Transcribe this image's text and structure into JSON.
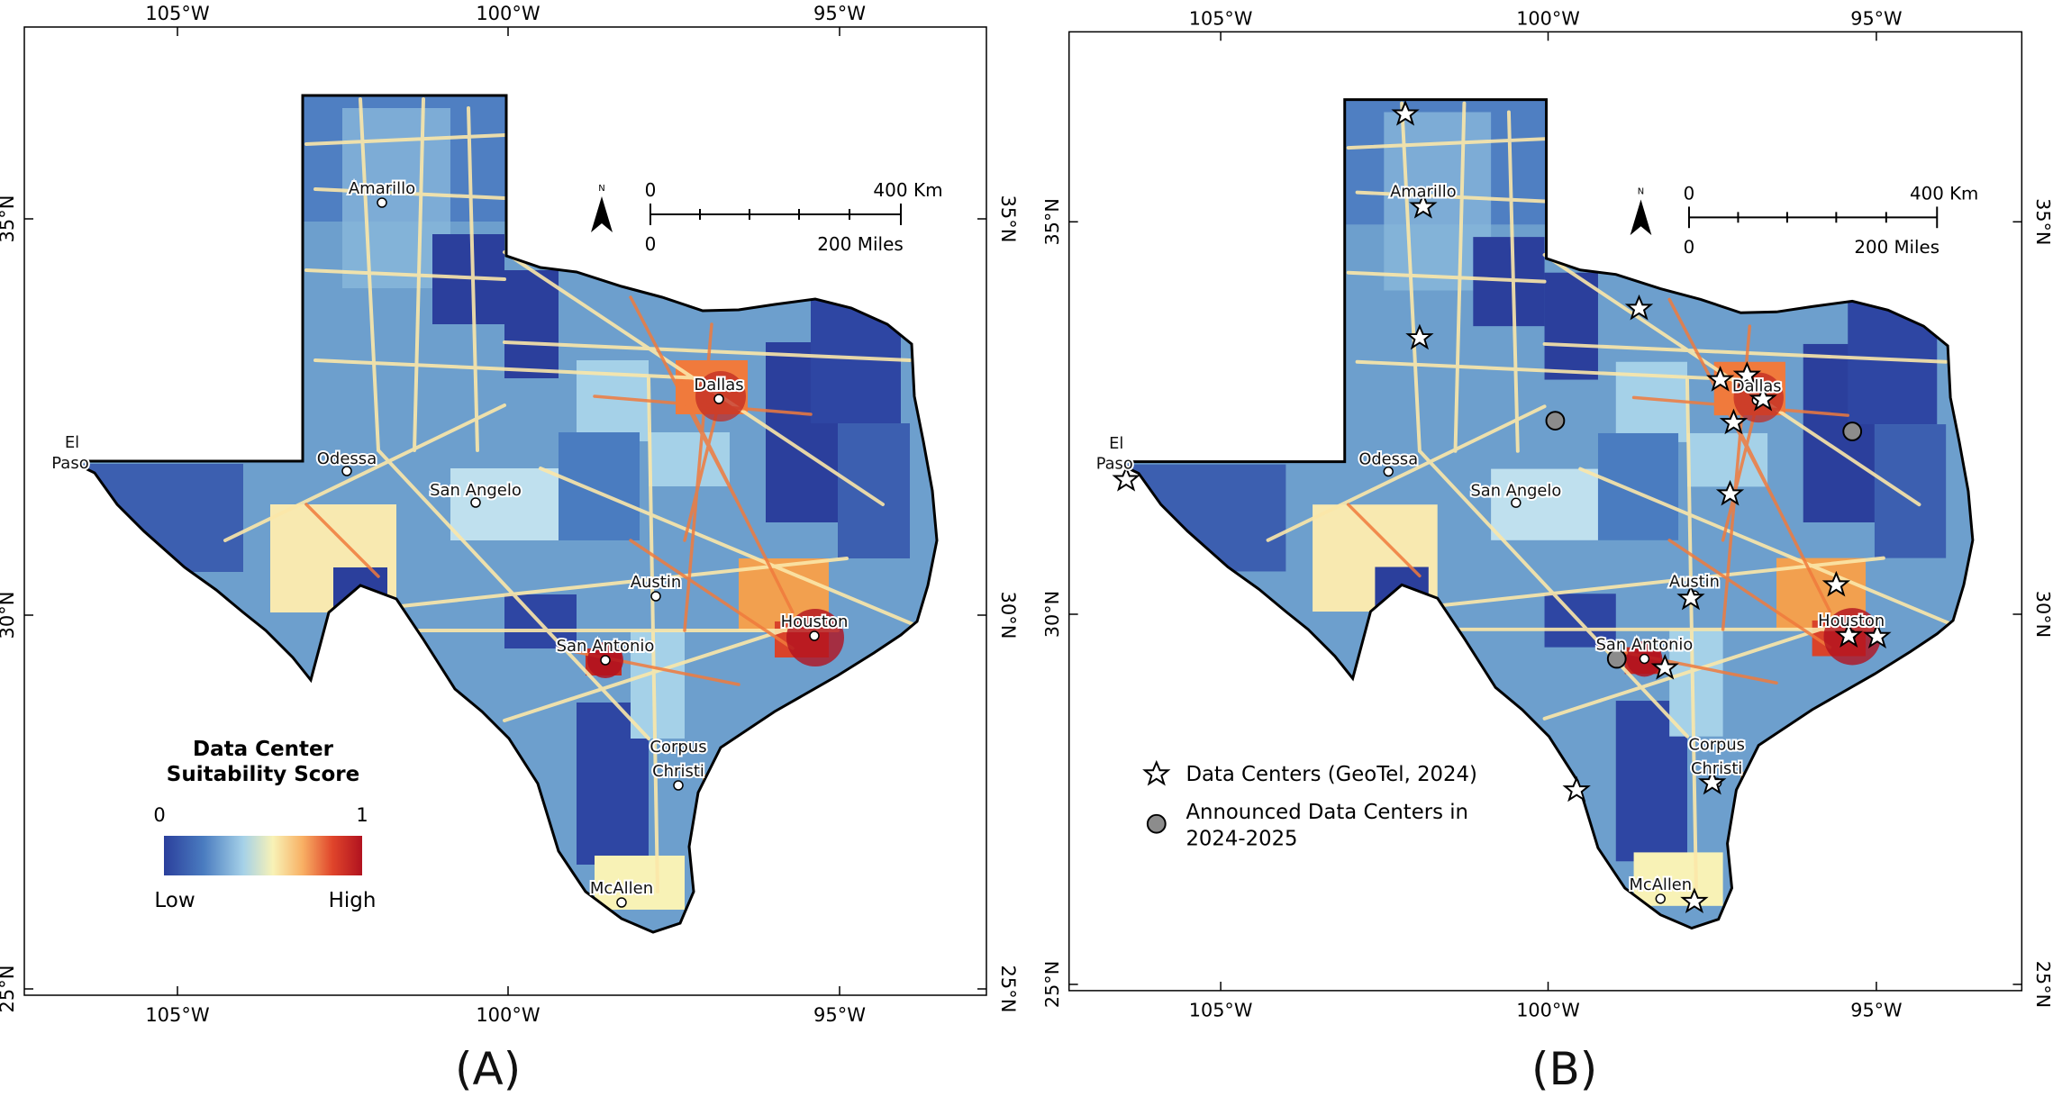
{
  "panels": [
    {
      "label": "(A)",
      "lon_ticks": [
        "105°W",
        "100°W",
        "95°W"
      ],
      "lat_ticks": [
        "35°N",
        "30°N",
        "25°N"
      ],
      "cities": [
        {
          "name": "Amarillo"
        },
        {
          "name": "El Paso"
        },
        {
          "name": "Odessa"
        },
        {
          "name": "San Angelo"
        },
        {
          "name": "Dallas"
        },
        {
          "name": "Austin"
        },
        {
          "name": "San Antonio"
        },
        {
          "name": "Houston"
        },
        {
          "name": "Corpus Christi"
        },
        {
          "name": "McAllen"
        }
      ],
      "scalebar": {
        "km_start": "0",
        "km_end": "400 Km",
        "mi_start": "0",
        "mi_end": "200 Miles",
        "north": "N"
      },
      "legend": {
        "title_line1": "Data Center",
        "title_line2": "Suitability Score",
        "min_value": "0",
        "max_value": "1",
        "low_label": "Low",
        "high_label": "High",
        "colors": [
          "#2b3f9c",
          "#4a7cc0",
          "#a5d1e8",
          "#f8f2b6",
          "#f8b064",
          "#e0452b",
          "#b1121f"
        ]
      }
    },
    {
      "label": "(B)",
      "lon_ticks": [
        "105°W",
        "100°W",
        "95°W"
      ],
      "lat_ticks": [
        "35°N",
        "30°N",
        "25°N"
      ],
      "cities": [
        {
          "name": "Amarillo"
        },
        {
          "name": "El Paso"
        },
        {
          "name": "Odessa"
        },
        {
          "name": "San Angelo"
        },
        {
          "name": "Dallas"
        },
        {
          "name": "Austin"
        },
        {
          "name": "San Antonio"
        },
        {
          "name": "Houston"
        },
        {
          "name": "Corpus Christi"
        },
        {
          "name": "McAllen"
        }
      ],
      "scalebar": {
        "km_start": "0",
        "km_end": "400 Km",
        "mi_start": "0",
        "mi_end": "200 Miles",
        "north": "N"
      },
      "legend": {
        "existing_label": "Data Centers (GeoTel, 2024)",
        "announced_line1": "Announced Data Centers in",
        "announced_line2": "2024-2025"
      }
    }
  ]
}
